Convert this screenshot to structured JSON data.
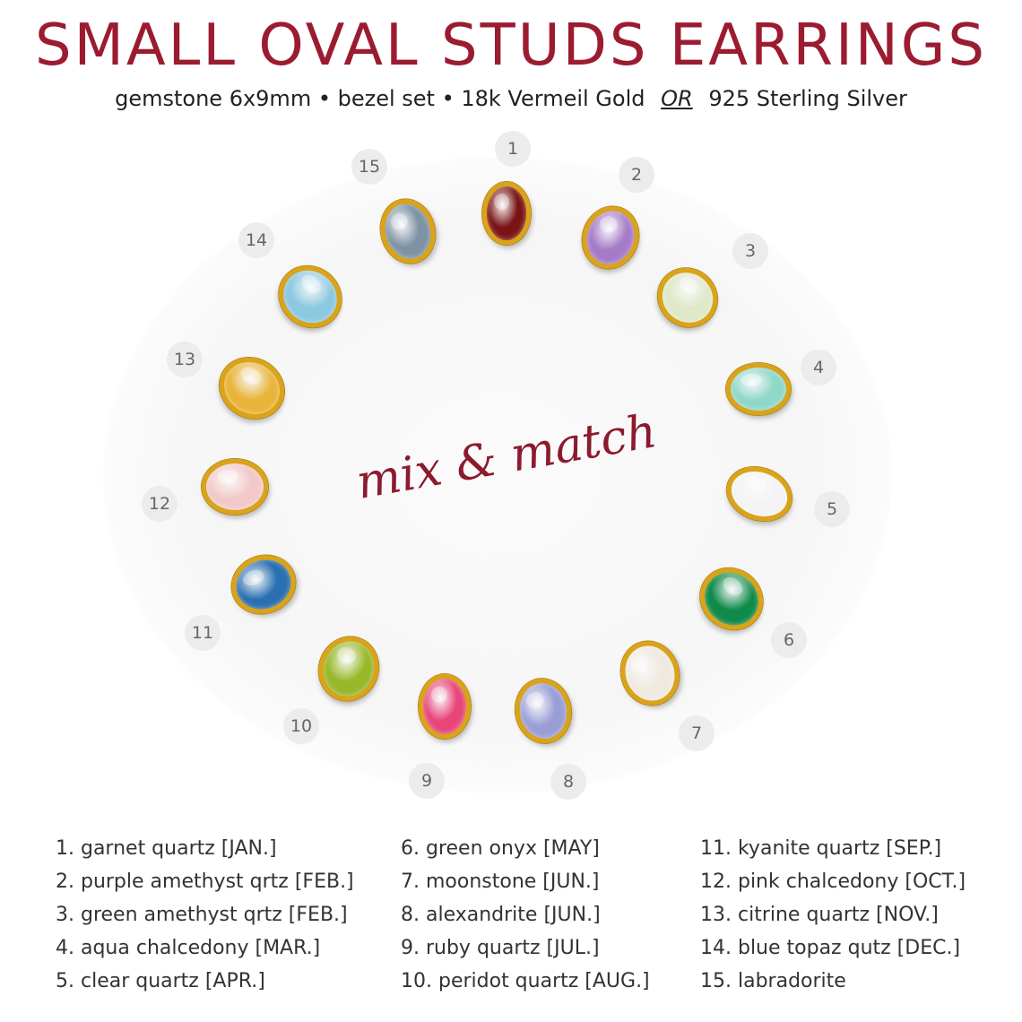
{
  "header": {
    "title": "SMALL OVAL STUDS EARRINGS",
    "subtitle_part1": "gemstone 6x9mm • bezel set • 18k Vermeil Gold",
    "subtitle_or": "OR",
    "subtitle_part2": "925 Sterling Silver"
  },
  "tagline": "mix & match",
  "tags": [
    "1",
    "2",
    "3",
    "4",
    "5",
    "6",
    "7",
    "8",
    "9",
    "10",
    "11",
    "12",
    "13",
    "14",
    "15"
  ],
  "stone_colors": {
    "1": "#7a1414",
    "2": "#a57bc8",
    "3": "#dfe8c8",
    "4": "#8fd8c8",
    "5": "#f4f4f4",
    "6": "#0f8a4a",
    "7": "#efeae0",
    "8": "#9a9ed6",
    "9": "#e8457a",
    "10": "#98b82a",
    "11": "#2a6fb0",
    "12": "#f2c9c9",
    "13": "#e8b43a",
    "14": "#8cc8e0",
    "15": "#7d93a4"
  },
  "legend": {
    "col1": [
      "1.  garnet quartz [JAN.]",
      "2.  purple amethyst qrtz [FEB.]",
      "3.  green amethyst qrtz [FEB.]",
      "4.  aqua chalcedony [MAR.]",
      "5.  clear quartz [APR.]"
    ],
    "col2": [
      "6.  green onyx [MAY]",
      "7.  moonstone [JUN.]",
      "8.  alexandrite [JUN.]",
      "9.  ruby quartz [JUL.]",
      "10. peridot quartz [AUG.]"
    ],
    "col3": [
      "11. kyanite quartz [SEP.]",
      "12. pink chalcedony [OCT.]",
      "13. citrine quartz [NOV.]",
      "14. blue topaz qutz [DEC.]",
      "15. labradorite"
    ]
  }
}
